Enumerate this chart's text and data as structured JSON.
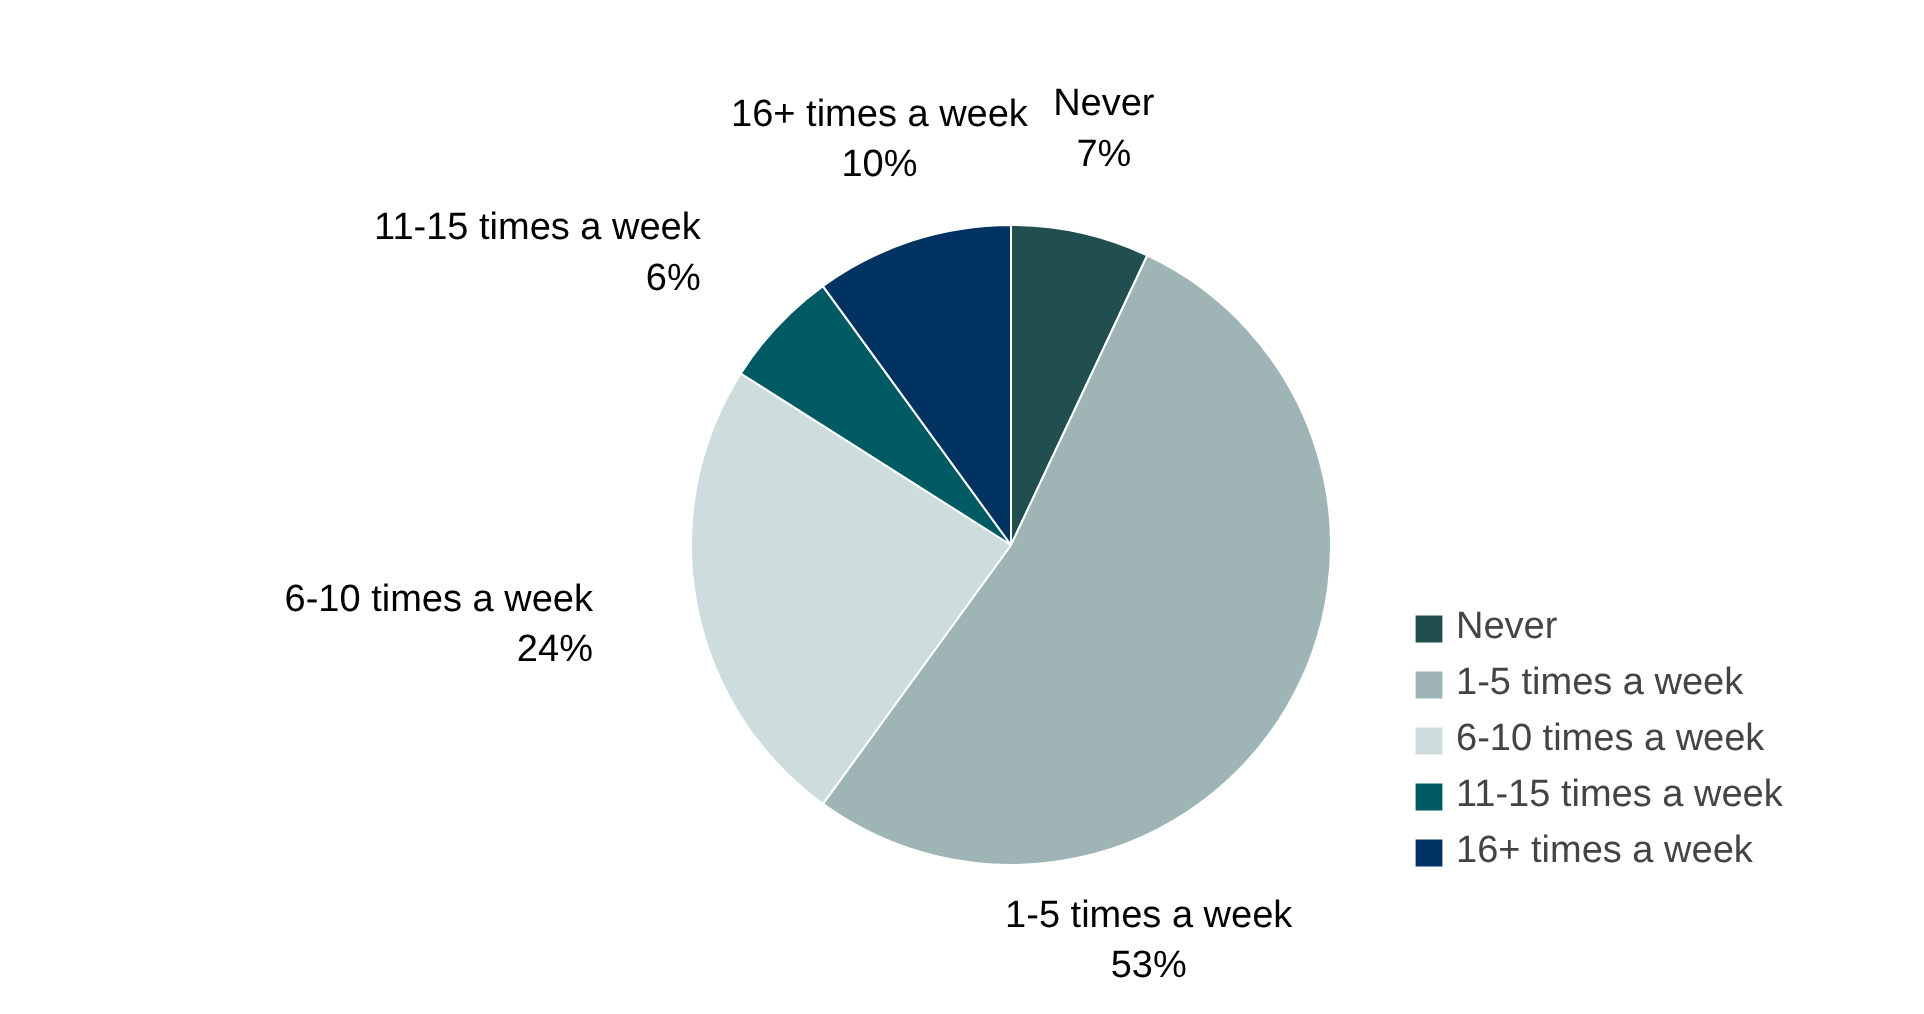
{
  "chart_data": {
    "type": "pie",
    "categories": [
      "Never",
      "1-5 times a week",
      "6-10 times a week",
      "11-15 times a week",
      "16+ times a week"
    ],
    "values": [
      7,
      53,
      24,
      6,
      10
    ],
    "colors": [
      "#214f4f",
      "#9fb5b5",
      "#cddcdc",
      "#005a63",
      "#003262"
    ],
    "value_labels": [
      "7%",
      "53%",
      "24%",
      "6%",
      "10%"
    ],
    "legend": "right"
  }
}
